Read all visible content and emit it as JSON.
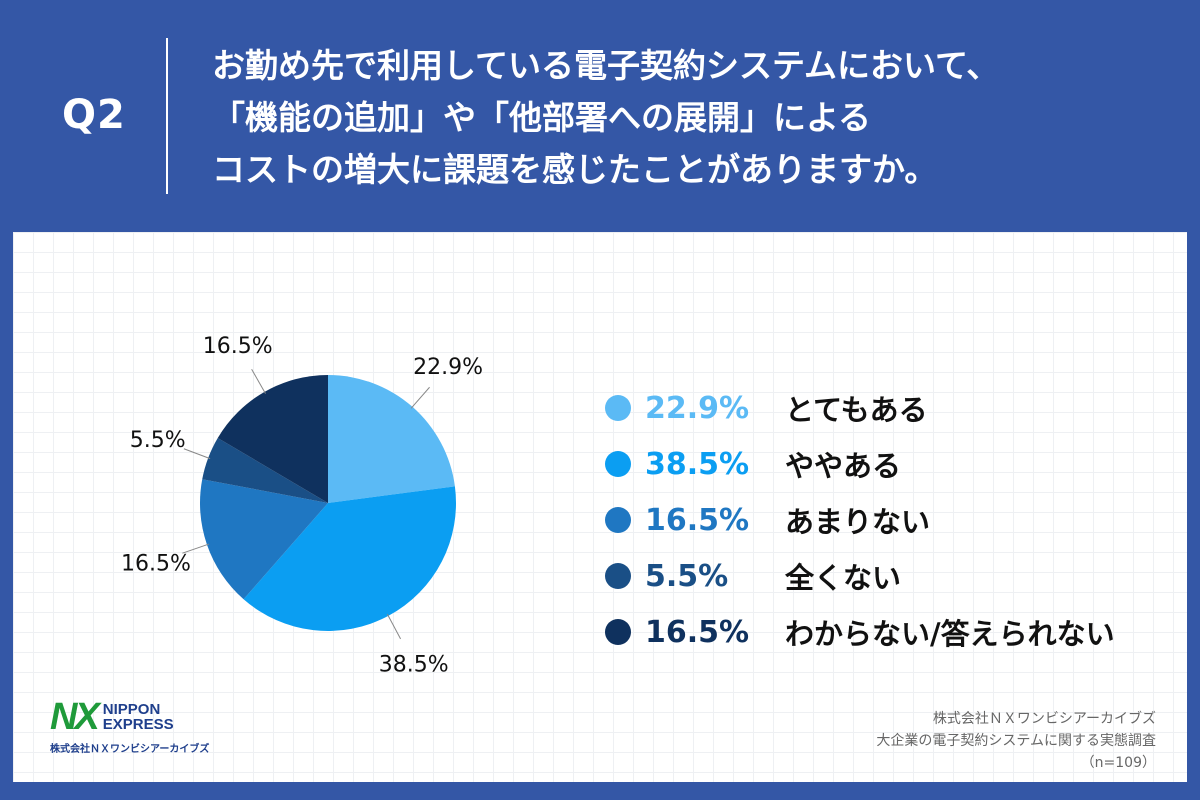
{
  "header": {
    "q_label": "Q2",
    "question_lines": [
      "お勤め先で利用している電子契約システムにおいて、",
      "「機能の追加」や「他部署への展開」による",
      "コストの増大に課題を感じたことがありますか。"
    ]
  },
  "chart_data": {
    "type": "pie",
    "categories": [
      "とてもある",
      "ややある",
      "あまりない",
      "全くない",
      "わからない/答えられない"
    ],
    "values": [
      22.9,
      38.5,
      16.5,
      5.5,
      16.5
    ],
    "value_labels": [
      "22.9%",
      "38.5%",
      "16.5%",
      "5.5%",
      "16.5%"
    ],
    "colors": [
      "#5bbaf5",
      "#0b9ef2",
      "#1f77c2",
      "#1a4f86",
      "#0f315e"
    ],
    "start_angle": "12 o'clock",
    "direction": "clockwise",
    "legend_position": "right"
  },
  "footer": {
    "logo": {
      "mark": "NX",
      "line1": "NIPPON",
      "line2": "EXPRESS",
      "company": "株式会社ＮＸワンビシアーカイブズ"
    },
    "source_lines": [
      "株式会社ＮＸワンビシアーカイブズ",
      "大企業の電子契約システムに関する実態調査",
      "（n=109）"
    ]
  }
}
